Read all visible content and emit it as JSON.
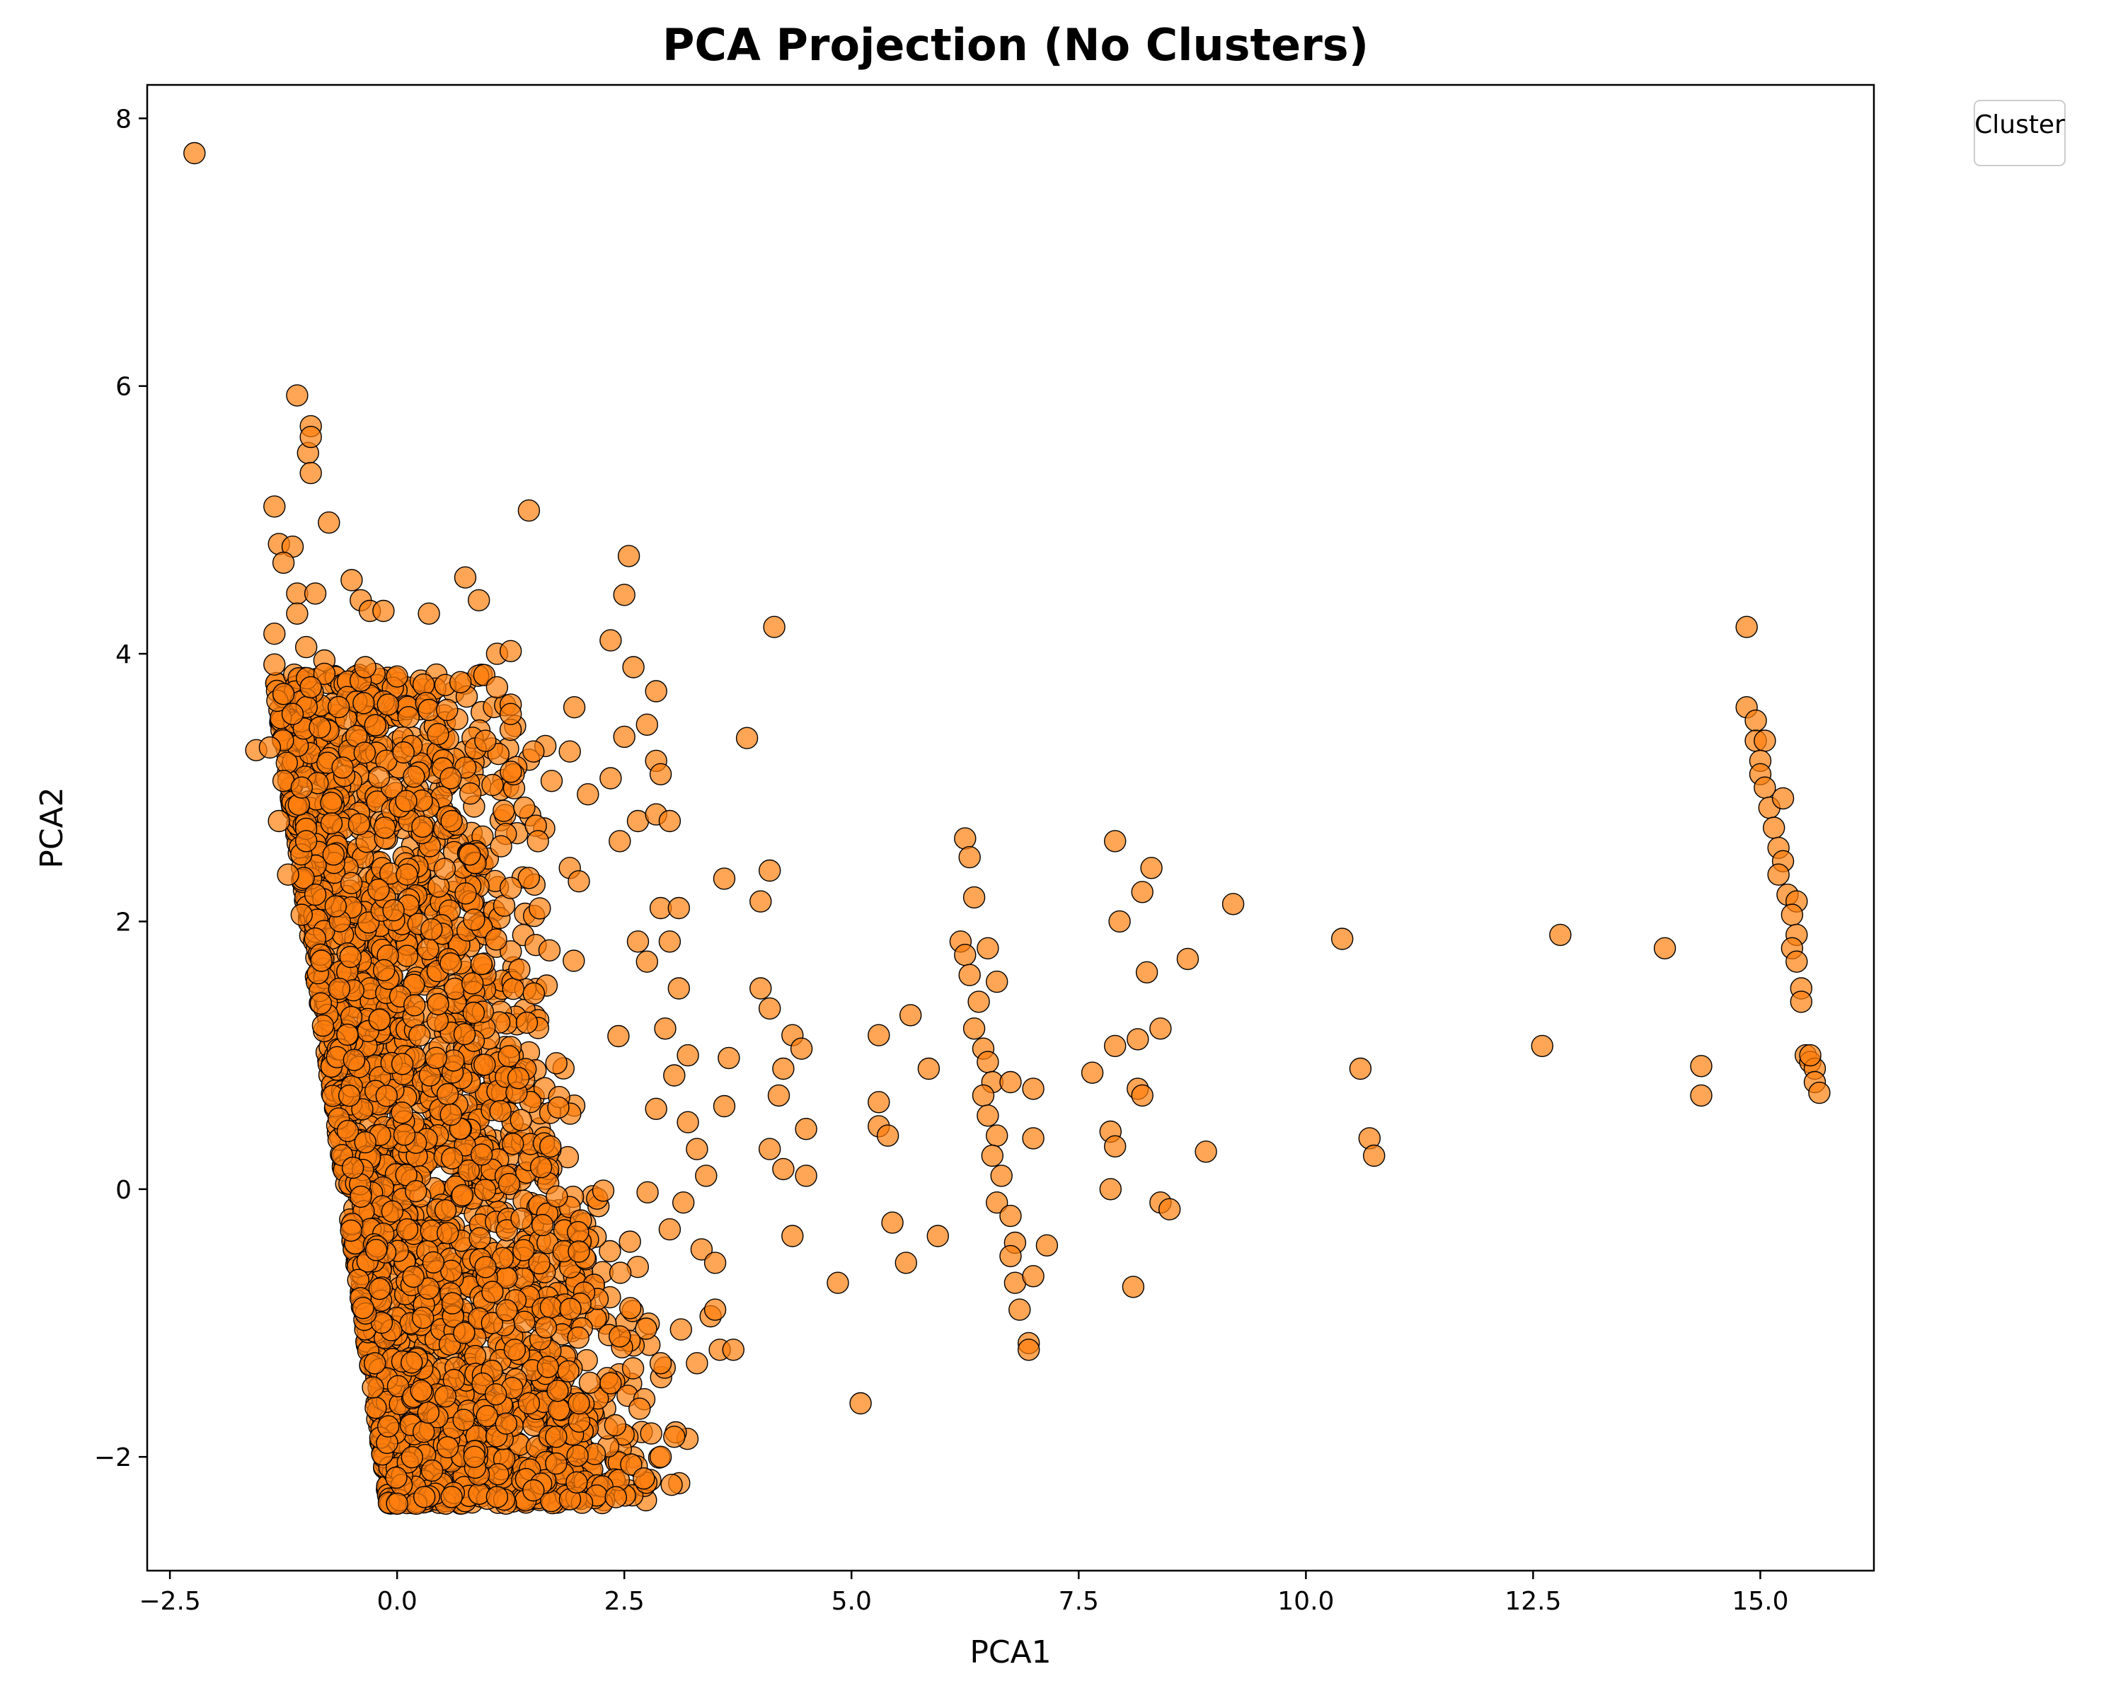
{
  "chart_data": {
    "type": "scatter",
    "title": "PCA Projection (No Clusters)",
    "xlabel": "PCA1",
    "ylabel": "PCA2",
    "xlim": [
      -2.75,
      16.25
    ],
    "ylim": [
      -2.85,
      8.25
    ],
    "xticks": [
      -2.5,
      0.0,
      2.5,
      5.0,
      7.5,
      10.0,
      12.5,
      15.0
    ],
    "xtick_labels": [
      "−2.5",
      "0.0",
      "2.5",
      "5.0",
      "7.5",
      "10.0",
      "12.5",
      "15.0"
    ],
    "yticks": [
      -2,
      0,
      2,
      4,
      6,
      8
    ],
    "ytick_labels": [
      "−2",
      "0",
      "2",
      "4",
      "6",
      "8"
    ],
    "grid": false,
    "legend": {
      "title": "Cluster",
      "position": "outside-top-right",
      "entries": []
    },
    "marker_color": "#ff7f0e",
    "marker_edge_color": "#000000",
    "marker_alpha": 0.7,
    "points": [
      [
        -2.23,
        7.74
      ],
      [
        -1.1,
        5.93
      ],
      [
        -0.95,
        5.7
      ],
      [
        -0.98,
        5.5
      ],
      [
        -0.95,
        5.62
      ],
      [
        -0.95,
        5.35
      ],
      [
        -1.35,
        5.1
      ],
      [
        -0.75,
        4.98
      ],
      [
        -1.3,
        4.82
      ],
      [
        -1.15,
        4.8
      ],
      [
        -1.25,
        4.68
      ],
      [
        -1.1,
        4.45
      ],
      [
        -0.9,
        4.45
      ],
      [
        -1.1,
        4.3
      ],
      [
        -1.35,
        4.15
      ],
      [
        -1.0,
        4.05
      ],
      [
        -0.8,
        3.95
      ],
      [
        -1.35,
        3.92
      ],
      [
        -0.8,
        3.85
      ],
      [
        -1.25,
        3.7
      ],
      [
        -0.95,
        3.75
      ],
      [
        -1.55,
        3.28
      ],
      [
        -1.4,
        3.3
      ],
      [
        -1.15,
        3.55
      ],
      [
        -0.85,
        3.45
      ],
      [
        -1.25,
        3.05
      ],
      [
        -1.05,
        3.0
      ],
      [
        -1.3,
        2.75
      ],
      [
        -1.0,
        2.6
      ],
      [
        -1.2,
        2.35
      ],
      [
        -0.9,
        2.2
      ],
      [
        -1.05,
        2.05
      ],
      [
        -0.7,
        2.5
      ],
      [
        -0.6,
        3.15
      ],
      [
        -0.5,
        4.55
      ],
      [
        -0.4,
        4.4
      ],
      [
        -0.3,
        4.32
      ],
      [
        -0.15,
        4.32
      ],
      [
        -0.35,
        3.9
      ],
      [
        0.0,
        3.83
      ],
      [
        -0.1,
        3.62
      ],
      [
        0.35,
        3.58
      ],
      [
        0.45,
        3.4
      ],
      [
        0.55,
        3.58
      ],
      [
        0.75,
        4.57
      ],
      [
        0.9,
        4.4
      ],
      [
        0.35,
        4.3
      ],
      [
        0.1,
        2.9
      ],
      [
        0.6,
        2.75
      ],
      [
        0.8,
        2.5
      ],
      [
        1.1,
        4.0
      ],
      [
        1.25,
        4.02
      ],
      [
        1.1,
        3.75
      ],
      [
        1.25,
        3.62
      ],
      [
        1.25,
        3.55
      ],
      [
        1.05,
        3.02
      ],
      [
        1.45,
        5.07
      ],
      [
        1.5,
        3.27
      ],
      [
        1.4,
        2.85
      ],
      [
        1.55,
        2.6
      ],
      [
        1.25,
        2.25
      ],
      [
        1.7,
        3.05
      ],
      [
        1.95,
        3.6
      ],
      [
        1.9,
        3.27
      ],
      [
        2.1,
        2.95
      ],
      [
        1.9,
        2.4
      ],
      [
        2.0,
        2.3
      ],
      [
        2.35,
        4.1
      ],
      [
        2.55,
        4.73
      ],
      [
        2.5,
        4.44
      ],
      [
        2.6,
        3.9
      ],
      [
        2.85,
        3.72
      ],
      [
        2.85,
        3.2
      ],
      [
        2.9,
        3.1
      ],
      [
        2.35,
        3.07
      ],
      [
        2.5,
        3.38
      ],
      [
        2.75,
        3.47
      ],
      [
        2.45,
        2.6
      ],
      [
        2.65,
        2.75
      ],
      [
        2.85,
        2.8
      ],
      [
        3.0,
        2.75
      ],
      [
        2.9,
        2.1
      ],
      [
        3.1,
        2.1
      ],
      [
        2.65,
        1.85
      ],
      [
        2.75,
        1.7
      ],
      [
        3.0,
        1.85
      ],
      [
        3.1,
        1.5
      ],
      [
        2.95,
        1.2
      ],
      [
        3.2,
        1.0
      ],
      [
        3.05,
        0.85
      ],
      [
        2.85,
        0.6
      ],
      [
        3.2,
        0.5
      ],
      [
        3.3,
        0.3
      ],
      [
        3.4,
        0.1
      ],
      [
        3.15,
        -0.1
      ],
      [
        3.0,
        -0.3
      ],
      [
        3.35,
        -0.45
      ],
      [
        3.5,
        -0.55
      ],
      [
        3.45,
        -0.95
      ],
      [
        3.55,
        -1.2
      ],
      [
        3.3,
        -1.3
      ],
      [
        2.9,
        -1.3
      ],
      [
        3.05,
        -1.85
      ],
      [
        2.9,
        -2.0
      ],
      [
        3.85,
        3.37
      ],
      [
        4.15,
        4.2
      ],
      [
        4.1,
        2.38
      ],
      [
        4.0,
        2.15
      ],
      [
        3.6,
        2.32
      ],
      [
        4.0,
        1.5
      ],
      [
        4.1,
        1.35
      ],
      [
        4.35,
        1.15
      ],
      [
        4.45,
        1.05
      ],
      [
        4.25,
        0.9
      ],
      [
        4.2,
        0.7
      ],
      [
        4.5,
        0.45
      ],
      [
        4.1,
        0.3
      ],
      [
        4.25,
        0.15
      ],
      [
        4.5,
        0.1
      ],
      [
        3.65,
        0.98
      ],
      [
        3.6,
        0.62
      ],
      [
        4.35,
        -0.35
      ],
      [
        3.7,
        -1.2
      ],
      [
        3.5,
        -0.9
      ],
      [
        4.85,
        -0.7
      ],
      [
        5.1,
        -1.6
      ],
      [
        5.3,
        1.15
      ],
      [
        5.3,
        0.65
      ],
      [
        5.3,
        0.47
      ],
      [
        5.4,
        0.4
      ],
      [
        5.65,
        1.3
      ],
      [
        5.85,
        0.9
      ],
      [
        5.45,
        -0.25
      ],
      [
        5.6,
        -0.55
      ],
      [
        5.95,
        -0.35
      ],
      [
        6.25,
        2.62
      ],
      [
        6.3,
        2.48
      ],
      [
        6.35,
        2.18
      ],
      [
        6.2,
        1.85
      ],
      [
        6.25,
        1.75
      ],
      [
        6.3,
        1.6
      ],
      [
        6.5,
        1.8
      ],
      [
        6.4,
        1.4
      ],
      [
        6.6,
        1.55
      ],
      [
        6.35,
        1.2
      ],
      [
        6.45,
        1.05
      ],
      [
        6.5,
        0.95
      ],
      [
        6.55,
        0.8
      ],
      [
        6.45,
        0.7
      ],
      [
        6.5,
        0.55
      ],
      [
        6.6,
        0.4
      ],
      [
        6.55,
        0.25
      ],
      [
        6.65,
        0.1
      ],
      [
        6.6,
        -0.1
      ],
      [
        6.75,
        -0.2
      ],
      [
        6.8,
        -0.4
      ],
      [
        6.75,
        -0.5
      ],
      [
        6.8,
        -0.7
      ],
      [
        6.85,
        -0.9
      ],
      [
        6.95,
        -1.15
      ],
      [
        6.95,
        -1.2
      ],
      [
        7.0,
        -0.65
      ],
      [
        6.75,
        0.8
      ],
      [
        7.0,
        0.75
      ],
      [
        7.0,
        0.38
      ],
      [
        7.15,
        -0.42
      ],
      [
        7.65,
        0.87
      ],
      [
        7.85,
        0.43
      ],
      [
        7.85,
        0.0
      ],
      [
        7.9,
        0.32
      ],
      [
        7.9,
        1.07
      ],
      [
        7.95,
        2.0
      ],
      [
        7.9,
        2.6
      ],
      [
        8.2,
        2.22
      ],
      [
        8.3,
        2.4
      ],
      [
        8.25,
        1.62
      ],
      [
        8.15,
        1.12
      ],
      [
        8.4,
        1.2
      ],
      [
        8.15,
        0.75
      ],
      [
        8.2,
        0.7
      ],
      [
        8.4,
        -0.1
      ],
      [
        8.5,
        -0.15
      ],
      [
        8.1,
        -0.73
      ],
      [
        8.7,
        1.72
      ],
      [
        8.9,
        0.28
      ],
      [
        9.2,
        2.13
      ],
      [
        10.4,
        1.87
      ],
      [
        10.6,
        0.9
      ],
      [
        10.7,
        0.38
      ],
      [
        10.75,
        0.25
      ],
      [
        12.6,
        1.07
      ],
      [
        12.8,
        1.9
      ],
      [
        13.95,
        1.8
      ],
      [
        14.35,
        0.92
      ],
      [
        14.35,
        0.7
      ],
      [
        14.85,
        4.2
      ],
      [
        14.85,
        3.6
      ],
      [
        14.95,
        3.5
      ],
      [
        14.95,
        3.35
      ],
      [
        15.05,
        3.35
      ],
      [
        15.0,
        3.2
      ],
      [
        15.0,
        3.1
      ],
      [
        15.05,
        3.0
      ],
      [
        15.1,
        2.85
      ],
      [
        15.25,
        2.92
      ],
      [
        15.15,
        2.7
      ],
      [
        15.2,
        2.55
      ],
      [
        15.25,
        2.45
      ],
      [
        15.2,
        2.35
      ],
      [
        15.3,
        2.2
      ],
      [
        15.4,
        2.15
      ],
      [
        15.35,
        2.05
      ],
      [
        15.4,
        1.9
      ],
      [
        15.35,
        1.8
      ],
      [
        15.4,
        1.7
      ],
      [
        15.45,
        1.5
      ],
      [
        15.45,
        1.4
      ],
      [
        15.5,
        1.0
      ],
      [
        15.55,
        0.95
      ],
      [
        15.6,
        0.9
      ],
      [
        15.6,
        0.8
      ],
      [
        15.65,
        0.72
      ],
      [
        15.55,
        1.0
      ],
      [
        1.1,
        -2.3
      ],
      [
        1.5,
        -2.25
      ],
      [
        0.6,
        -2.3
      ],
      [
        1.75,
        -2.05
      ],
      [
        0.3,
        -2.3
      ],
      [
        1.75,
        -1.85
      ],
      [
        2.0,
        -1.6
      ],
      [
        2.35,
        -1.45
      ],
      [
        2.45,
        -1.1
      ],
      [
        0.0,
        -2.35
      ],
      [
        0.85,
        -2.0
      ],
      [
        1.45,
        -1.6
      ]
    ],
    "dense_cluster": {
      "description_points_generated": true,
      "count": 2600,
      "seed": 1337
    }
  }
}
